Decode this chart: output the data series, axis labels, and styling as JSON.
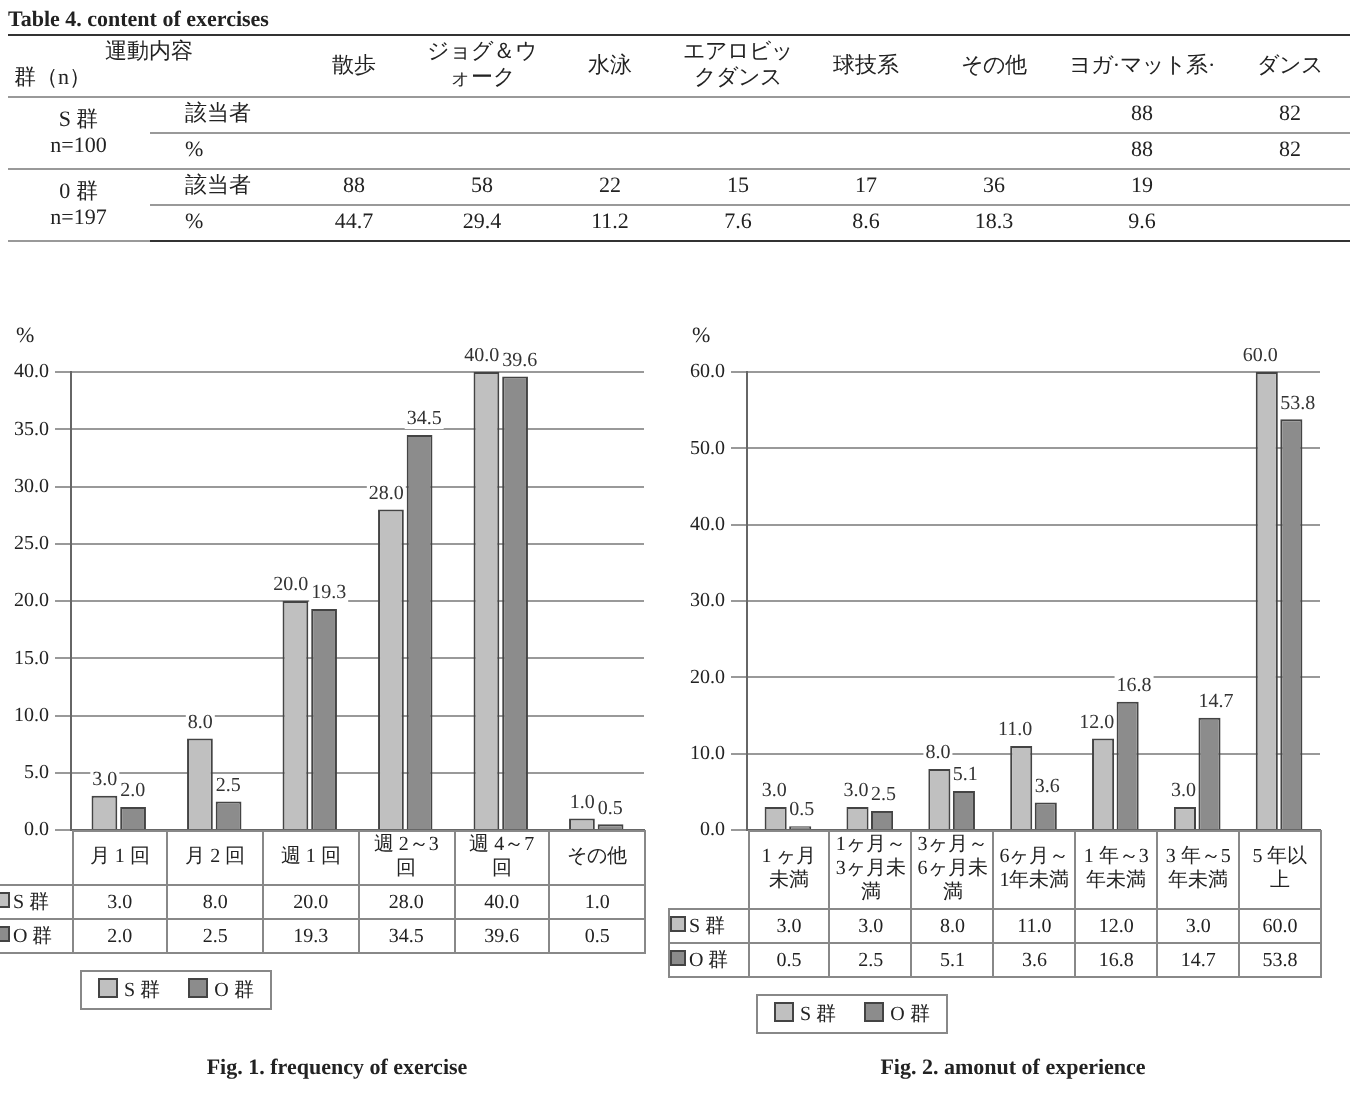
{
  "chart_data": [
    {
      "type": "other",
      "title": "Table 4.  content of exercises",
      "xlabel": "運動内容",
      "ylabel": "群（n）",
      "categories": [
        "散歩",
        "ジョグ＆ウォーク",
        "水泳",
        "エアロビックダンス",
        "球技系",
        "その他",
        "ヨガ·マット系·",
        "ダンス"
      ],
      "data_labels": true,
      "annotations": [
        "S 群",
        "n=100",
        "0 群",
        "n=197"
      ],
      "series": [
        {
          "name": "該当者",
          "values": [
            null,
            null,
            null,
            null,
            null,
            null,
            88,
            82
          ]
        },
        {
          "name": "%",
          "values": [
            null,
            null,
            null,
            null,
            null,
            null,
            88,
            82
          ]
        },
        {
          "name": "該当者",
          "values": [
            88,
            58,
            22,
            15,
            17,
            36,
            19,
            null
          ]
        },
        {
          "name": "%",
          "values": [
            44.7,
            29.4,
            11.2,
            7.6,
            8.6,
            18.3,
            9.6,
            null
          ]
        }
      ]
    },
    {
      "type": "bar",
      "title": "Fig.  1.  frequency of exercise",
      "ylabel": "%",
      "categories": [
        "月 1 回",
        "月 2 回",
        "週 1 回",
        "週 2～3 回",
        "週 4～7 回",
        "その他"
      ],
      "ylim": [
        0,
        40
      ],
      "yticks": [
        {
          "value": 0,
          "label": "0.0"
        },
        {
          "value": 5,
          "label": "5.0"
        },
        {
          "value": 10,
          "label": "10.0"
        },
        {
          "value": 15,
          "label": "15.0"
        },
        {
          "value": 20,
          "label": "20.0"
        },
        {
          "value": 25,
          "label": "25.0"
        },
        {
          "value": 30,
          "label": "30.0"
        },
        {
          "value": 35,
          "label": "35.0"
        },
        {
          "value": 40,
          "label": "40.0"
        }
      ],
      "grid": "y",
      "legend": "bottom",
      "series": [
        {
          "name": "S 群",
          "color": "#c0c0c0",
          "values": [
            3.0,
            8.0,
            20.0,
            28.0,
            40.0,
            1.0
          ],
          "value_labels": [
            "3.0",
            "8.0",
            "20.0",
            "28.0",
            "40.0",
            "1.0"
          ]
        },
        {
          "name": "O 群",
          "color": "#8c8c8c",
          "values": [
            2.0,
            2.5,
            19.3,
            34.5,
            39.6,
            0.5
          ],
          "value_labels": [
            "2.0",
            "2.5",
            "19.3",
            "34.5",
            "39.6",
            "0.5"
          ]
        }
      ]
    },
    {
      "type": "bar",
      "title": "Fig.  2.  amonut of experience",
      "ylabel": "%",
      "categories": [
        "1 ヶ月未満",
        "1ヶ月～3ヶ月未満",
        "3ヶ月～6ヶ月未満",
        "6ヶ月～1年未満",
        "1 年～3 年未満",
        "3 年～5 年未満",
        "5 年以上"
      ],
      "ylim": [
        0,
        60
      ],
      "yticks": [
        {
          "value": 0,
          "label": "0.0"
        },
        {
          "value": 10,
          "label": "10.0"
        },
        {
          "value": 20,
          "label": "20.0"
        },
        {
          "value": 30,
          "label": "30.0"
        },
        {
          "value": 40,
          "label": "40.0"
        },
        {
          "value": 50,
          "label": "50.0"
        },
        {
          "value": 60,
          "label": "60.0"
        }
      ],
      "grid": "y",
      "legend": "bottom",
      "series": [
        {
          "name": "S 群",
          "color": "#c0c0c0",
          "values": [
            3.0,
            3.0,
            8.0,
            11.0,
            12.0,
            3.0,
            60.0
          ],
          "value_labels": [
            "3.0",
            "3.0",
            "8.0",
            "11.0",
            "12.0",
            "3.0",
            "60.0"
          ]
        },
        {
          "name": "O 群",
          "color": "#8c8c8c",
          "values": [
            0.5,
            2.5,
            5.1,
            3.6,
            16.8,
            14.7,
            53.8
          ],
          "value_labels": [
            "0.5",
            "2.5",
            "5.1",
            "3.6",
            "16.8",
            "14.7",
            "53.8"
          ]
        }
      ]
    }
  ]
}
